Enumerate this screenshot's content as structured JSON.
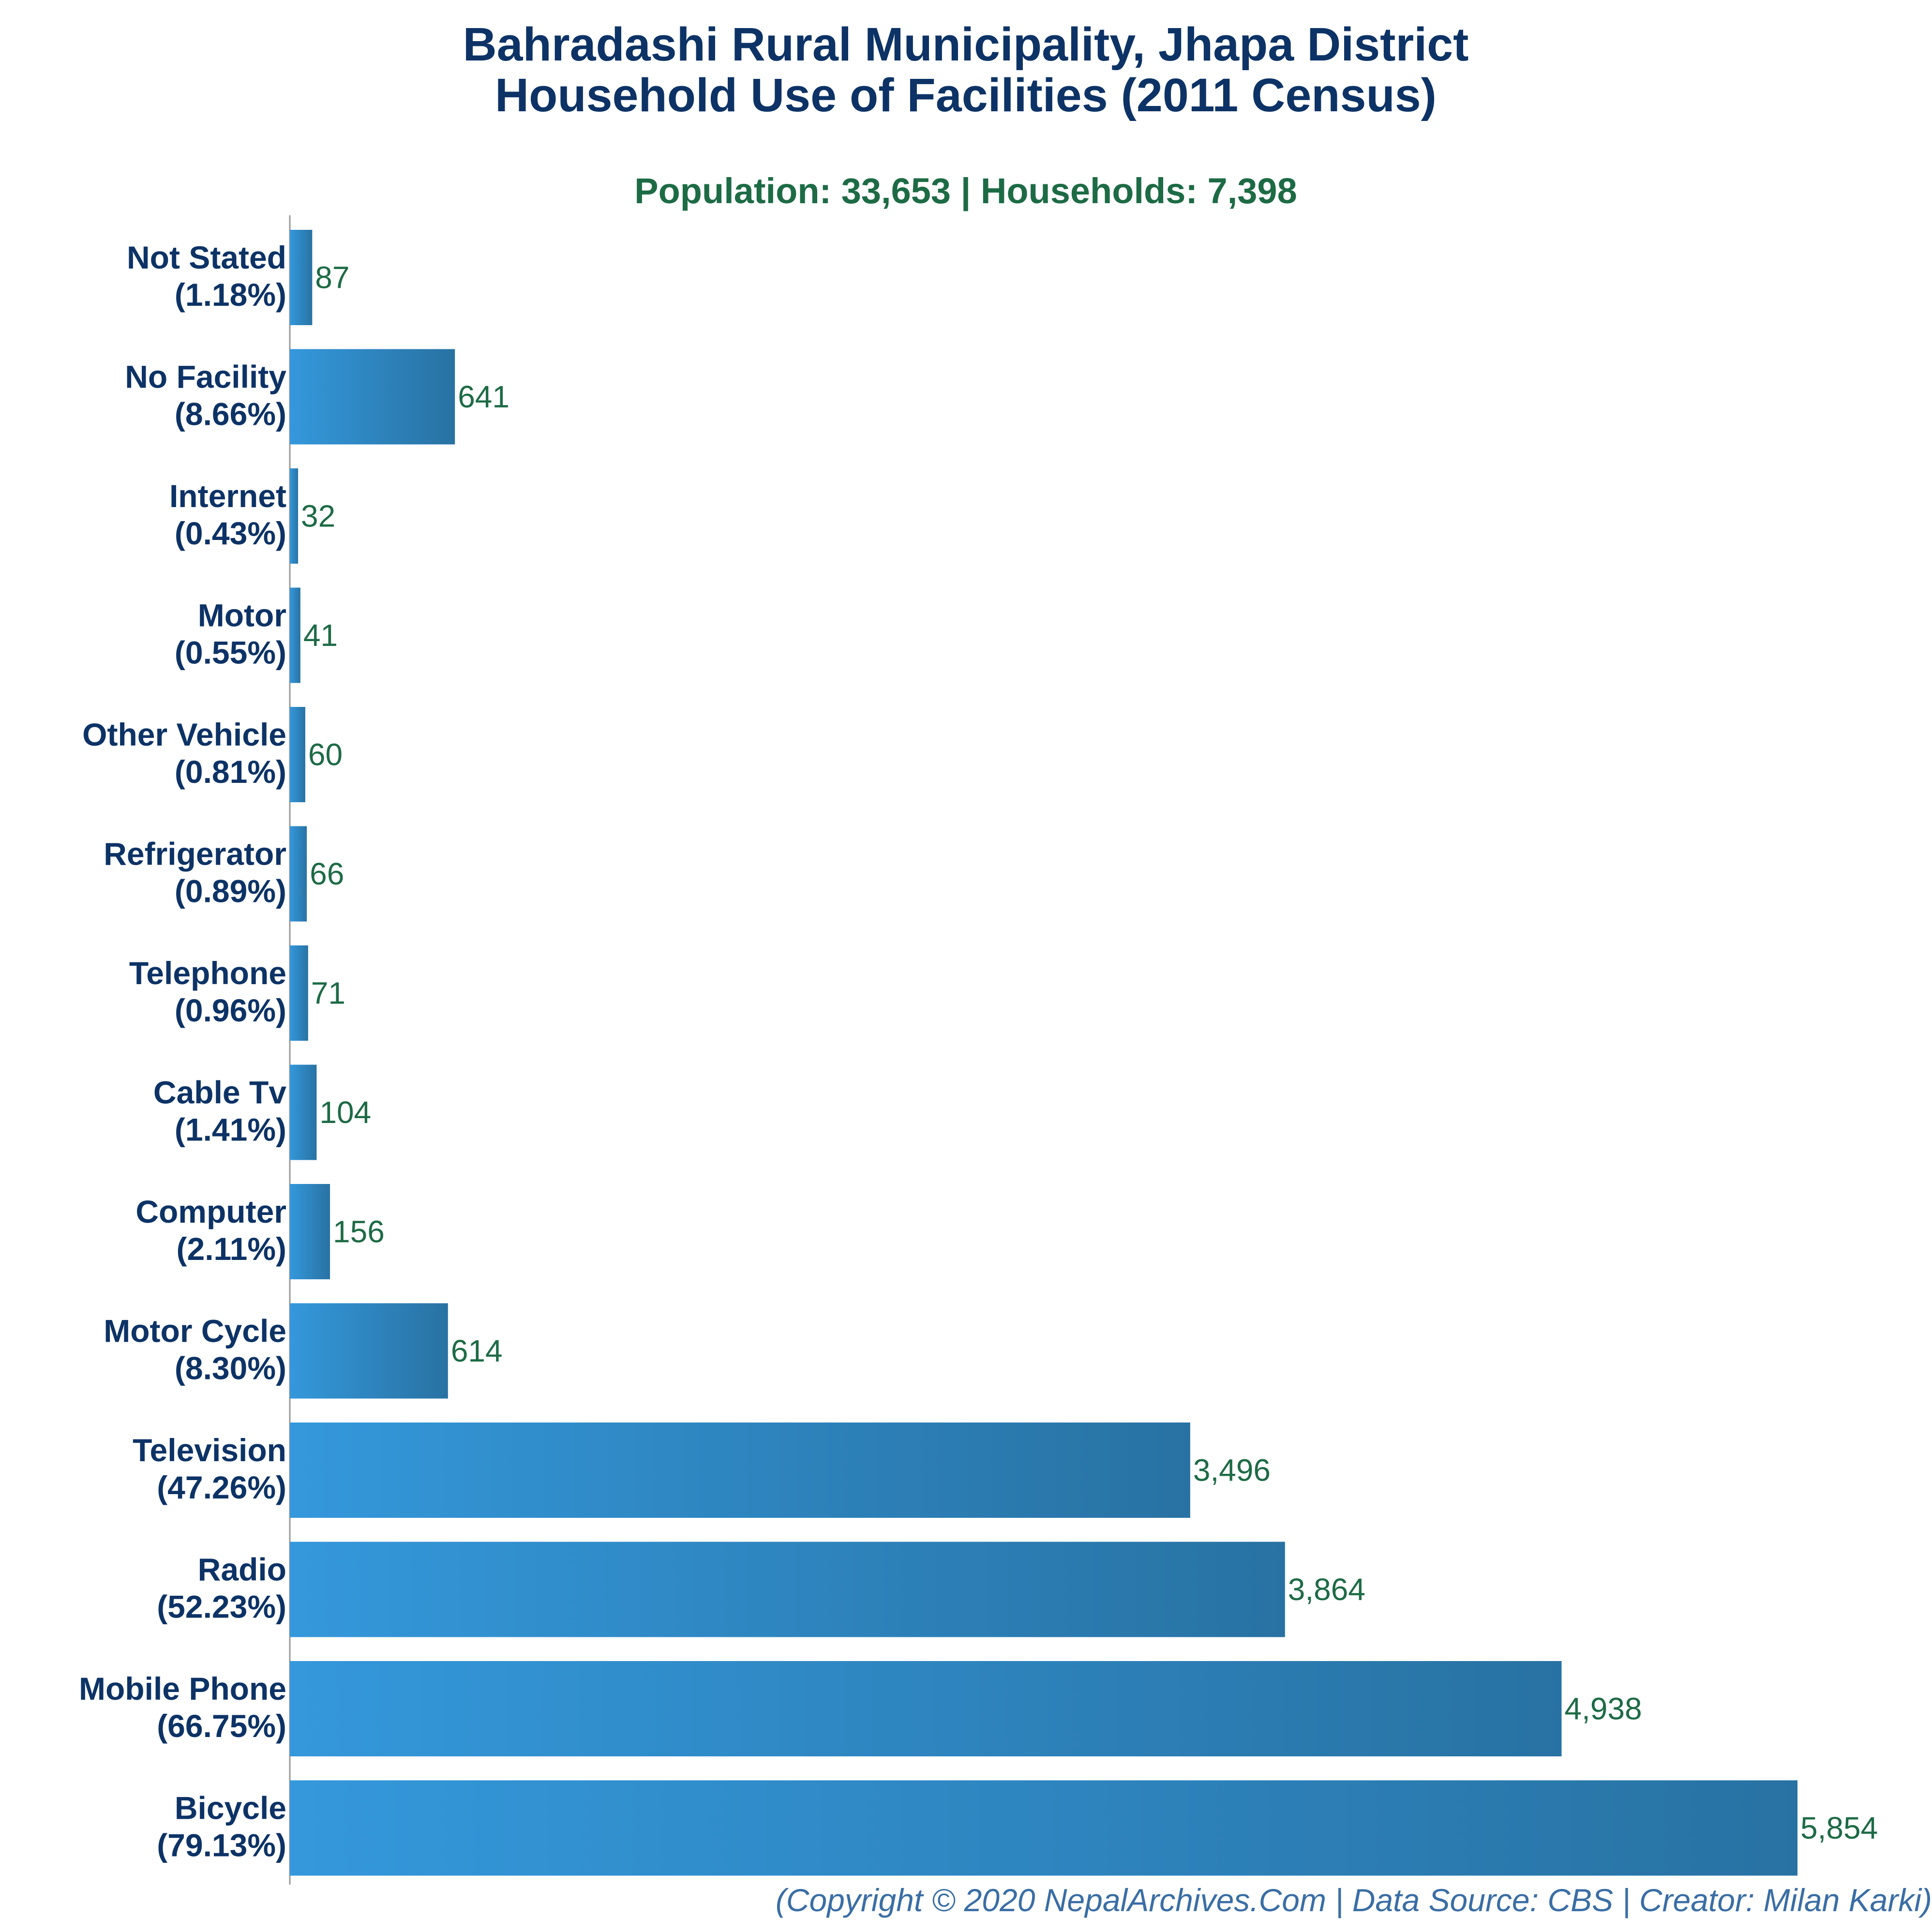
{
  "chart_data": {
    "type": "bar",
    "orientation": "horizontal",
    "title": "Bahradashi Rural Municipality, Jhapa District",
    "title_line2": "Household Use of Facilities (2011 Census)",
    "subtitle": "Population: 33,653 | Households: 7,398",
    "categories": [
      "Not Stated",
      "No Facility",
      "Internet",
      "Motor",
      "Other Vehicle",
      "Refrigerator",
      "Telephone",
      "Cable Tv",
      "Computer",
      "Motor Cycle",
      "Television",
      "Radio",
      "Mobile Phone",
      "Bicycle"
    ],
    "percent_labels": [
      "(1.18%)",
      "(8.66%)",
      "(0.43%)",
      "(0.55%)",
      "(0.81%)",
      "(0.89%)",
      "(0.96%)",
      "(1.41%)",
      "(2.11%)",
      "(8.30%)",
      "(47.26%)",
      "(52.23%)",
      "(66.75%)",
      "(79.13%)"
    ],
    "values": [
      87,
      641,
      32,
      41,
      60,
      66,
      71,
      104,
      156,
      614,
      3496,
      3864,
      4938,
      5854
    ],
    "value_labels": [
      "87",
      "641",
      "32",
      "41",
      "60",
      "66",
      "71",
      "104",
      "156",
      "614",
      "3,496",
      "3,864",
      "4,938",
      "5,854"
    ],
    "xlabel": "",
    "ylabel": "",
    "xlim": [
      0,
      5854
    ],
    "grid": false,
    "legend": "none",
    "colors": {
      "bar_light": "#3498db",
      "bar_dark": "#2872a3",
      "title": "#0d3366",
      "subtitle": "#1d6b45",
      "value": "#1d6b45",
      "footer": "#3a6ea5"
    }
  },
  "footer": "(Copyright © 2020 NepalArchives.Com | Data Source: CBS | Creator: Milan Karki)"
}
